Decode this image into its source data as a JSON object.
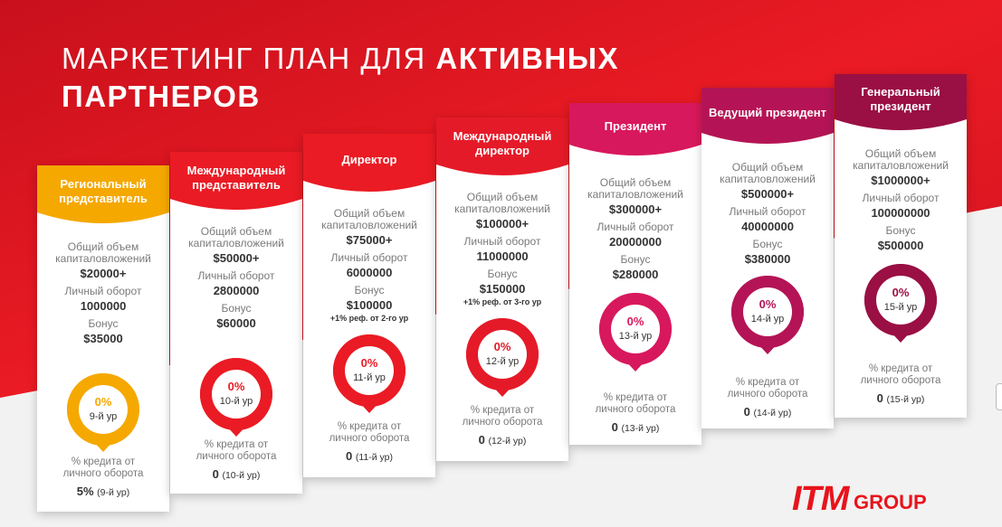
{
  "title": {
    "line1_light": "МАРКЕТИНГ ПЛАН ДЛЯ ",
    "line1_bold": "АКТИВНЫХ",
    "line2_bold": "ПАРТНЕРОВ"
  },
  "cards": [
    {
      "title": "Региональный представитель",
      "color": "#f5a800",
      "ring": "#f5a800",
      "pct_color": "#f5a800",
      "invest_label": "Общий объем капиталовложений",
      "invest": "$20000+",
      "turnover_label": "Личный оборот",
      "turnover": "1000000",
      "bonus_label": "Бонус",
      "bonus": "$35000",
      "bonus_note": "",
      "pin_pct": "0%",
      "pin_level": "9-й ур",
      "credit_label": "% кредита от личного оборота",
      "credit_value": "5%",
      "credit_level": "(9-й ур)"
    },
    {
      "title": "Международный представитель",
      "color": "#ea1b24",
      "ring": "#ea1b24",
      "pct_color": "#ea1b24",
      "invest_label": "Общий объем капиталовложений",
      "invest": "$50000+",
      "turnover_label": "Личный оборот",
      "turnover": "2800000",
      "bonus_label": "Бонус",
      "bonus": "$60000",
      "bonus_note": "",
      "pin_pct": "0%",
      "pin_level": "10-й ур",
      "credit_label": "% кредита от личного оборота",
      "credit_value": "0",
      "credit_level": "(10-й ур)"
    },
    {
      "title": "Директор",
      "color": "#ea1b24",
      "ring": "#ea1b24",
      "pct_color": "#ea1b24",
      "invest_label": "Общий объем капиталовложений",
      "invest": "$75000+",
      "turnover_label": "Личный оборот",
      "turnover": "6000000",
      "bonus_label": "Бонус",
      "bonus": "$100000",
      "bonus_note": "+1% реф. от 2-го ур",
      "pin_pct": "0%",
      "pin_level": "11-й ур",
      "credit_label": "% кредита от личного оборота",
      "credit_value": "0",
      "credit_level": "(11-й ур)"
    },
    {
      "title": "Международный директор",
      "color": "#e51a28",
      "ring": "#e51a28",
      "pct_color": "#e51a28",
      "invest_label": "Общий объем капиталовложений",
      "invest": "$100000+",
      "turnover_label": "Личный оборот",
      "turnover": "11000000",
      "bonus_label": "Бонус",
      "bonus": "$150000",
      "bonus_note": "+1% реф. от 3-го ур",
      "pin_pct": "0%",
      "pin_level": "12-й ур",
      "credit_label": "% кредита от личного оборота",
      "credit_value": "0",
      "credit_level": "(12-й ур)"
    },
    {
      "title": "Президент",
      "color": "#d8185c",
      "ring": "#d8185c",
      "pct_color": "#d8185c",
      "invest_label": "Общий объем капиталовложений",
      "invest": "$300000+",
      "turnover_label": "Личный оборот",
      "turnover": "20000000",
      "bonus_label": "Бонус",
      "bonus": "$280000",
      "bonus_note": "",
      "pin_pct": "0%",
      "pin_level": "13-й ур",
      "credit_label": "% кредита от личного оборота",
      "credit_value": "0",
      "credit_level": "(13-й ур)"
    },
    {
      "title": "Ведущий президент",
      "color": "#b41455",
      "ring": "#b41455",
      "pct_color": "#b41455",
      "invest_label": "Общий объем капиталовложений",
      "invest": "$500000+",
      "turnover_label": "Личный оборот",
      "turnover": "40000000",
      "bonus_label": "Бонус",
      "bonus": "$380000",
      "bonus_note": "",
      "pin_pct": "0%",
      "pin_level": "14-й ур",
      "credit_label": "% кредита от личного оборота",
      "credit_value": "0",
      "credit_level": "(14-й ур)"
    },
    {
      "title": "Генеральный президент",
      "color": "#9a0f44",
      "ring": "#9a0f44",
      "pct_color": "#9a0f44",
      "invest_label": "Общий объем капиталовложений",
      "invest": "$1000000+",
      "turnover_label": "Личный оборот",
      "turnover": "100000000",
      "bonus_label": "Бонус",
      "bonus": "$500000",
      "bonus_note": "",
      "pin_pct": "0%",
      "pin_level": "15-й ур",
      "credit_label": "% кредита от личного оборота",
      "credit_value": "0",
      "credit_level": "(15-й ур)"
    }
  ],
  "logo": {
    "brand": "ITM",
    "group": "GROUP"
  },
  "colors": {
    "background_red": "#e8141c",
    "background_grey": "#f2f2f2",
    "brand": "#e8141c"
  }
}
